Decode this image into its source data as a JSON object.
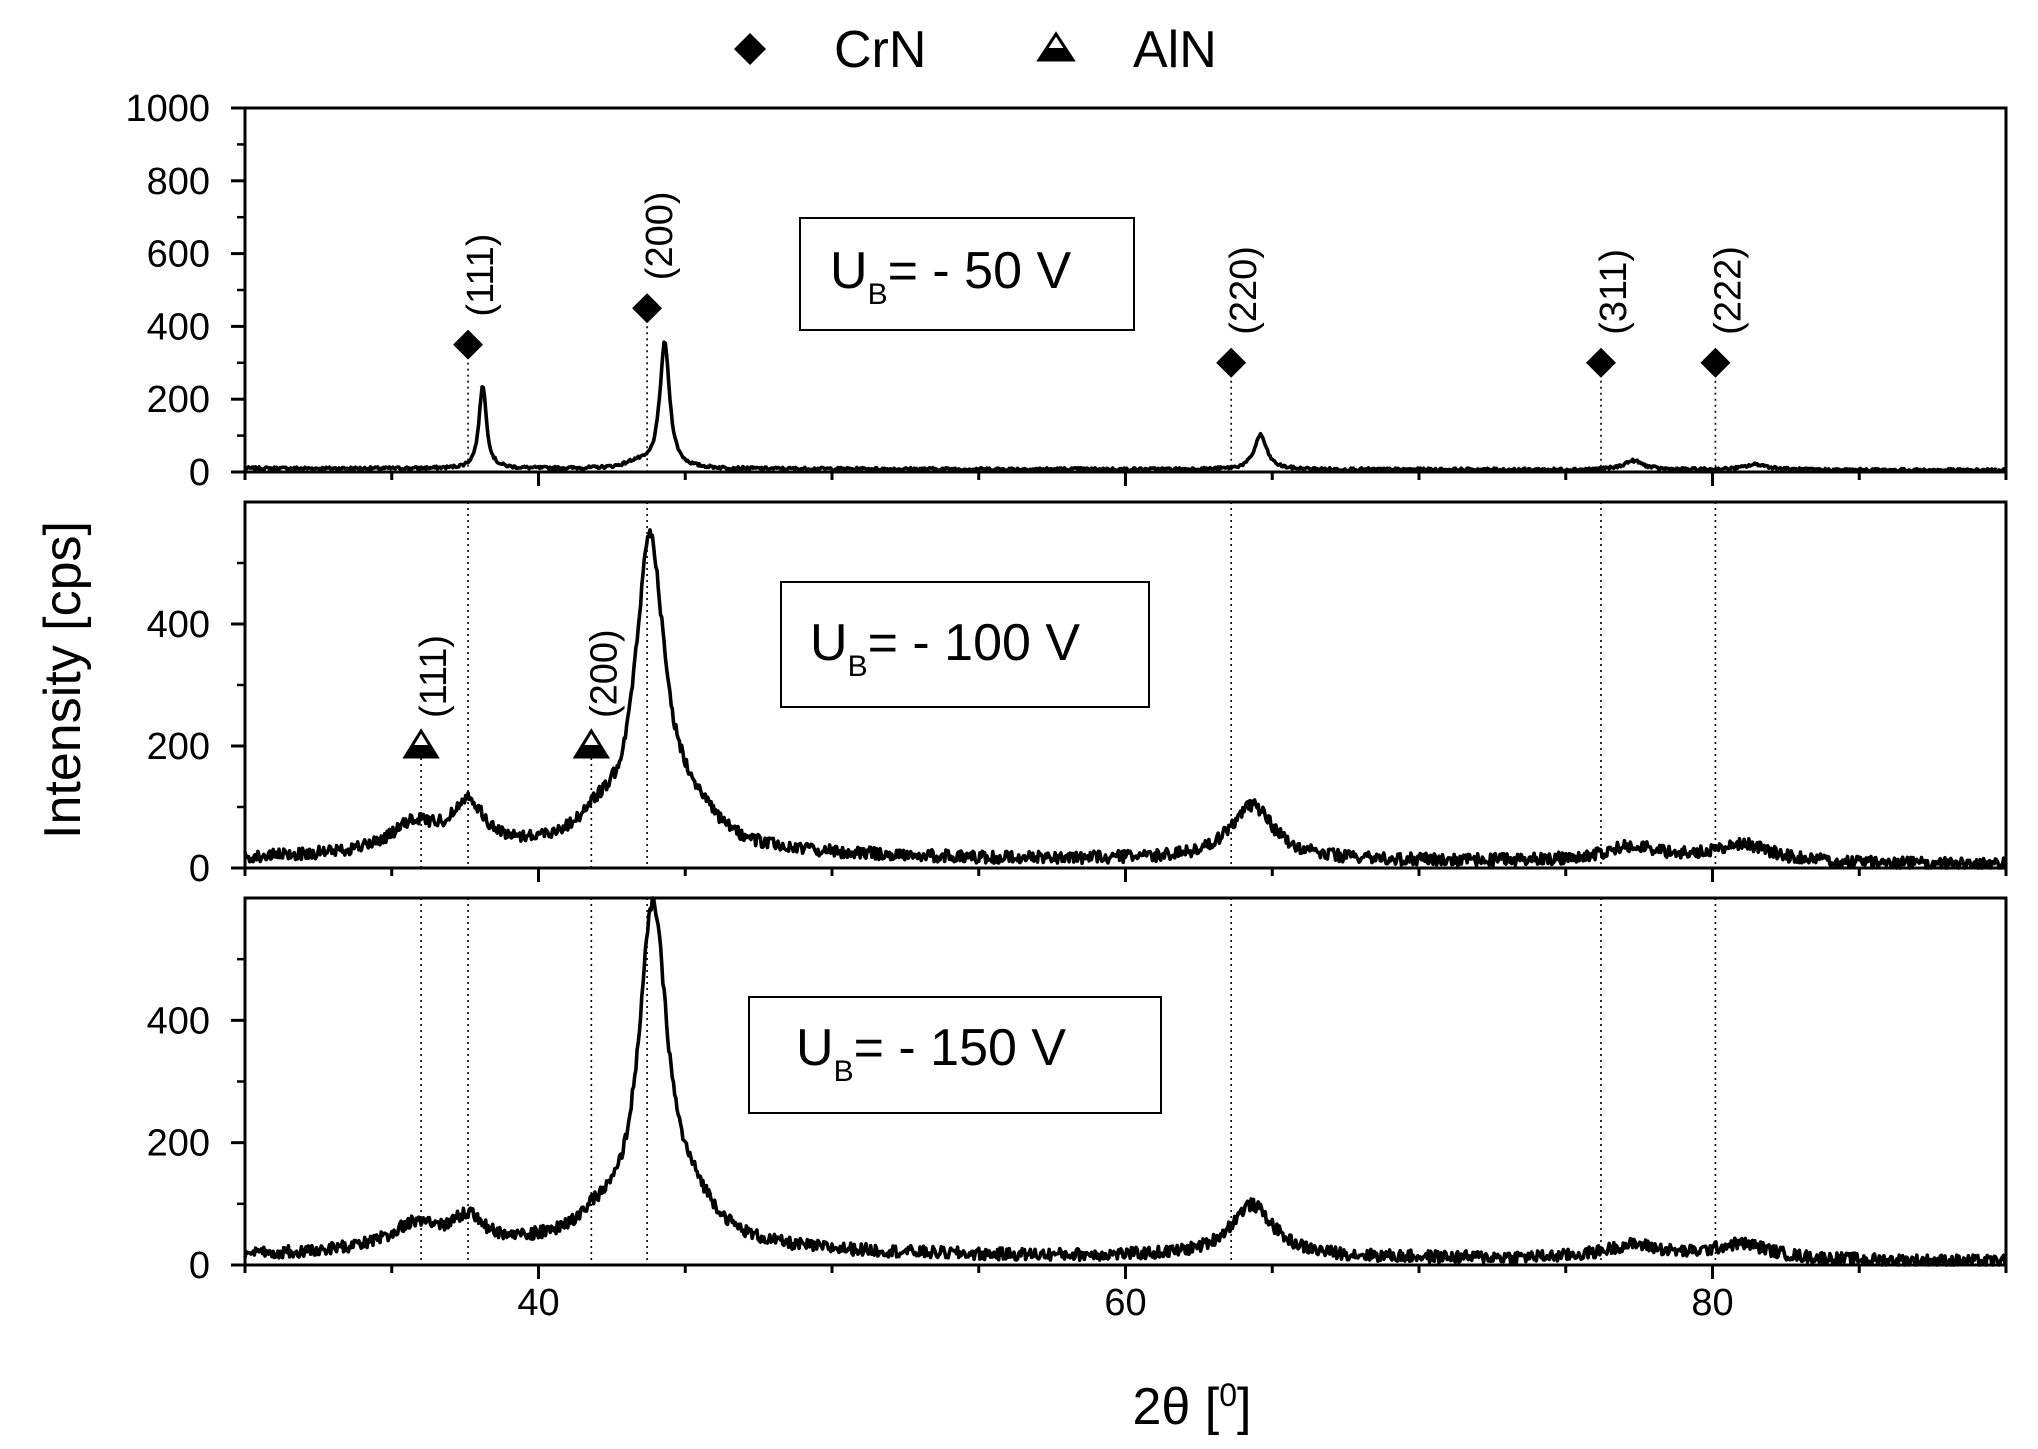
{
  "chart_data": {
    "type": "line",
    "title": "",
    "xlabel": "2θ [⁰]",
    "xlabel_main": "2θ [",
    "xlabel_sup": "0",
    "xlabel_close": "]",
    "ylabel": "Intensity [cps]",
    "xlim": [
      30,
      90
    ],
    "xticks": [
      40,
      60,
      80
    ],
    "xtick_labels": [
      "40",
      "60",
      "80"
    ],
    "legend": [
      {
        "label": "CrN",
        "marker": "diamond-filled"
      },
      {
        "label": "AlN",
        "marker": "triangle-half"
      }
    ],
    "reference_lines": {
      "CrN": [
        37.6,
        43.7,
        63.6,
        76.2,
        80.1
      ],
      "AlN": [
        36.0,
        41.8
      ]
    },
    "panels": [
      {
        "id": "top",
        "bias_main": "U",
        "bias_sub": "B",
        "bias_rest": "= - 50 V",
        "ylim": [
          0,
          1000
        ],
        "yticks": [
          0,
          200,
          400,
          600,
          800,
          1000
        ],
        "ytick_labels": [
          "0",
          "200",
          "400",
          "600",
          "800",
          "1000"
        ],
        "baseline": [
          [
            30,
            10
          ],
          [
            88,
            5
          ],
          [
            90,
            5
          ]
        ],
        "peaks": [
          {
            "center": 38.1,
            "height": 230,
            "width": 0.15
          },
          {
            "center": 43.3,
            "height": 15,
            "width": 0.4
          },
          {
            "center": 44.3,
            "height": 345,
            "width": 0.2
          },
          {
            "center": 64.6,
            "height": 95,
            "width": 0.25
          },
          {
            "center": 77.3,
            "height": 25,
            "width": 0.4
          },
          {
            "center": 81.5,
            "height": 15,
            "width": 0.5
          }
        ],
        "noise": 4,
        "markers": [
          {
            "phase": "CrN",
            "x": 37.6,
            "y": 350,
            "hkl": "(111)"
          },
          {
            "phase": "CrN",
            "x": 43.7,
            "y": 450,
            "hkl": "(200)"
          },
          {
            "phase": "CrN",
            "x": 63.6,
            "y": 300,
            "hkl": "(220)"
          },
          {
            "phase": "CrN",
            "x": 76.2,
            "y": 300,
            "hkl": "(311)"
          },
          {
            "phase": "CrN",
            "x": 80.1,
            "y": 300,
            "hkl": "(222)"
          }
        ]
      },
      {
        "id": "middle",
        "bias_main": "U",
        "bias_sub": "B",
        "bias_rest": "= - 100 V",
        "ylim": [
          0,
          600
        ],
        "yticks": [
          0,
          200,
          400
        ],
        "ytick_labels": [
          "0",
          "200",
          "400"
        ],
        "baseline": [
          [
            30,
            15
          ],
          [
            40,
            30
          ],
          [
            55,
            15
          ],
          [
            90,
            5
          ]
        ],
        "peaks": [
          {
            "center": 35.8,
            "height": 45,
            "width": 1.0
          },
          {
            "center": 37.6,
            "height": 75,
            "width": 0.6
          },
          {
            "center": 42.0,
            "height": 35,
            "width": 0.8
          },
          {
            "center": 43.8,
            "height": 500,
            "width": 0.6
          },
          {
            "center": 45.2,
            "height": 50,
            "width": 1.0
          },
          {
            "center": 64.3,
            "height": 90,
            "width": 0.9
          },
          {
            "center": 77.3,
            "height": 25,
            "width": 1.2
          },
          {
            "center": 81.0,
            "height": 30,
            "width": 1.2
          }
        ],
        "noise": 10,
        "markers": [
          {
            "phase": "AlN",
            "x": 36.0,
            "y": 200,
            "hkl": "(111)"
          },
          {
            "phase": "AlN",
            "x": 41.8,
            "y": 200,
            "hkl": "(200)"
          }
        ]
      },
      {
        "id": "bottom",
        "bias_main": "U",
        "bias_sub": "B",
        "bias_rest": "= - 150 V",
        "ylim": [
          0,
          600
        ],
        "yticks": [
          0,
          200,
          400
        ],
        "ytick_labels": [
          "0",
          "200",
          "400"
        ],
        "baseline": [
          [
            30,
            15
          ],
          [
            40,
            30
          ],
          [
            55,
            15
          ],
          [
            90,
            5
          ]
        ],
        "peaks": [
          {
            "center": 35.8,
            "height": 40,
            "width": 1.0
          },
          {
            "center": 37.6,
            "height": 45,
            "width": 0.6
          },
          {
            "center": 42.0,
            "height": 30,
            "width": 0.8
          },
          {
            "center": 43.9,
            "height": 545,
            "width": 0.6
          },
          {
            "center": 45.3,
            "height": 50,
            "width": 1.0
          },
          {
            "center": 64.3,
            "height": 85,
            "width": 0.9
          },
          {
            "center": 77.3,
            "height": 22,
            "width": 1.2
          },
          {
            "center": 81.0,
            "height": 25,
            "width": 1.2
          }
        ],
        "noise": 10,
        "markers": []
      }
    ]
  }
}
